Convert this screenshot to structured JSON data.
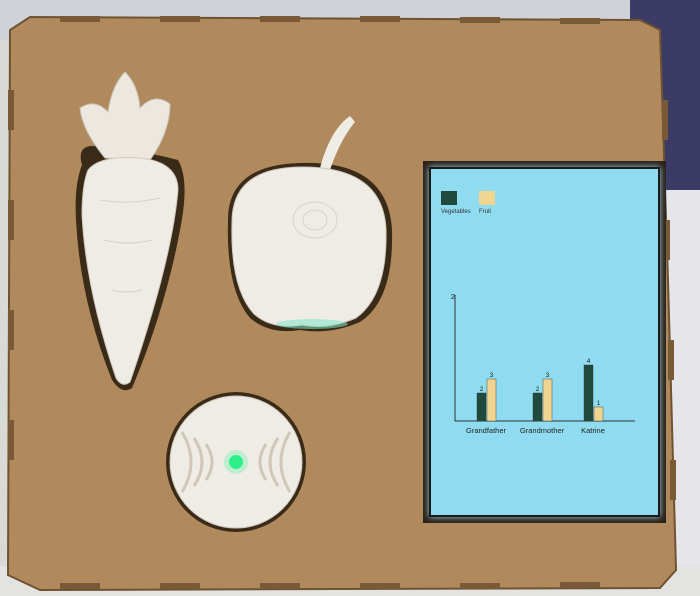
{
  "scene": {
    "objects": [
      "carrot-shape",
      "apple-shape",
      "nfc-reader-pad",
      "display-screen"
    ],
    "colors": {
      "board": "#b08a5c",
      "board_shadow": "#8e6b43",
      "object": "#efece6",
      "screen": "#8fdcf0",
      "led": "#2ef08a"
    }
  },
  "screen": {
    "chart_data": {
      "type": "bar",
      "categories": [
        "Grandfather",
        "Grandmother",
        "Katrine"
      ],
      "series": [
        {
          "name": "Vegetables",
          "values": [
            2,
            2,
            4
          ],
          "color": "#1f4a3c"
        },
        {
          "name": "Fruit",
          "values": [
            3,
            3,
            1
          ],
          "color": "#efd58f"
        }
      ],
      "y_max_label": "2",
      "legend_position": "top-left",
      "grid": false
    }
  }
}
